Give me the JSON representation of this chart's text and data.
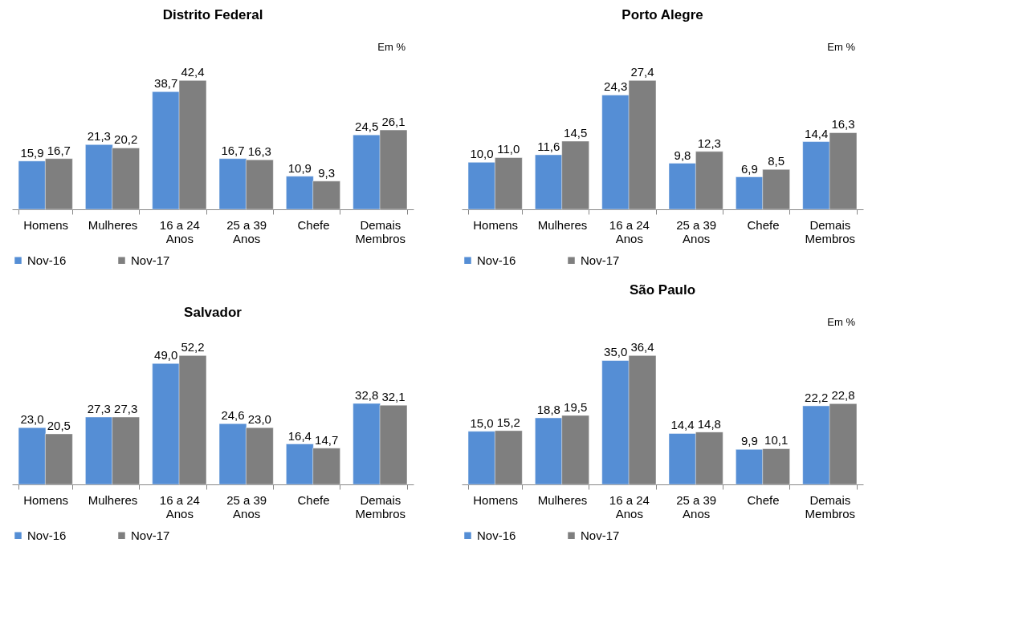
{
  "chart_data": [
    {
      "type": "bar",
      "title": "Distrito Federal",
      "annotations": [
        "Em %"
      ],
      "categories": [
        "Homens",
        "Mulheres",
        "16 a 24 Anos",
        "25 a 39 Anos",
        "Chefe",
        "Demais Membros"
      ],
      "series": [
        {
          "name": "Nov-16",
          "color": "#558ed5",
          "values": [
            15.9,
            21.3,
            38.7,
            16.7,
            10.9,
            24.5
          ],
          "value_labels": [
            "15,9",
            "21,3",
            "38,7",
            "16,7",
            "10,9",
            "24,5"
          ]
        },
        {
          "name": "Nov-17",
          "color": "#7f7f7f",
          "values": [
            16.7,
            20.2,
            42.4,
            16.3,
            9.3,
            26.1
          ],
          "value_labels": [
            "16,7",
            "20,2",
            "42,4",
            "16,3",
            "9,3",
            "26,1"
          ]
        }
      ],
      "legend": "bottom",
      "grid": false
    },
    {
      "type": "bar",
      "title": "Porto Alegre",
      "annotations": [
        "Em %"
      ],
      "categories": [
        "Homens",
        "Mulheres",
        "16 a 24 Anos",
        "25 a 39 Anos",
        "Chefe",
        "Demais Membros"
      ],
      "series": [
        {
          "name": "Nov-16",
          "color": "#558ed5",
          "values": [
            10.0,
            11.6,
            24.3,
            9.8,
            6.9,
            14.4
          ],
          "value_labels": [
            "10,0",
            "11,6",
            "24,3",
            "9,8",
            "6,9",
            "14,4"
          ]
        },
        {
          "name": "Nov-17",
          "color": "#7f7f7f",
          "values": [
            11.0,
            14.5,
            27.4,
            12.3,
            8.5,
            16.3
          ],
          "value_labels": [
            "11,0",
            "14,5",
            "27,4",
            "12,3",
            "8,5",
            "16,3"
          ]
        }
      ],
      "legend": "bottom",
      "grid": false
    },
    {
      "type": "bar",
      "title": "Salvador",
      "categories": [
        "Homens",
        "Mulheres",
        "16 a 24 Anos",
        "25 a 39 Anos",
        "Chefe",
        "Demais Membros"
      ],
      "series": [
        {
          "name": "Nov-16",
          "color": "#558ed5",
          "values": [
            23.0,
            27.3,
            49.0,
            24.6,
            16.4,
            32.8
          ],
          "value_labels": [
            "23,0",
            "27,3",
            "49,0",
            "24,6",
            "16,4",
            "32,8"
          ]
        },
        {
          "name": "Nov-17",
          "color": "#7f7f7f",
          "values": [
            20.5,
            27.3,
            52.2,
            23.0,
            14.7,
            32.1
          ],
          "value_labels": [
            "20,5",
            "27,3",
            "52,2",
            "23,0",
            "14,7",
            "32,1"
          ]
        }
      ],
      "legend": "bottom",
      "grid": false
    },
    {
      "type": "bar",
      "title": "São Paulo",
      "annotations": [
        "Em %"
      ],
      "categories": [
        "Homens",
        "Mulheres",
        "16 a 24 Anos",
        "25 a 39 Anos",
        "Chefe",
        "Demais Membros"
      ],
      "series": [
        {
          "name": "Nov-16",
          "color": "#558ed5",
          "values": [
            15.0,
            18.8,
            35.0,
            14.4,
            9.9,
            22.2
          ],
          "value_labels": [
            "15,0",
            "18,8",
            "35,0",
            "14,4",
            "9,9",
            "22,2"
          ]
        },
        {
          "name": "Nov-17",
          "color": "#7f7f7f",
          "values": [
            15.2,
            19.5,
            36.4,
            14.8,
            10.1,
            22.8
          ],
          "value_labels": [
            "15,2",
            "19,5",
            "36,4",
            "14,8",
            "10,1",
            "22,8"
          ]
        }
      ],
      "legend": "bottom",
      "grid": false
    }
  ]
}
